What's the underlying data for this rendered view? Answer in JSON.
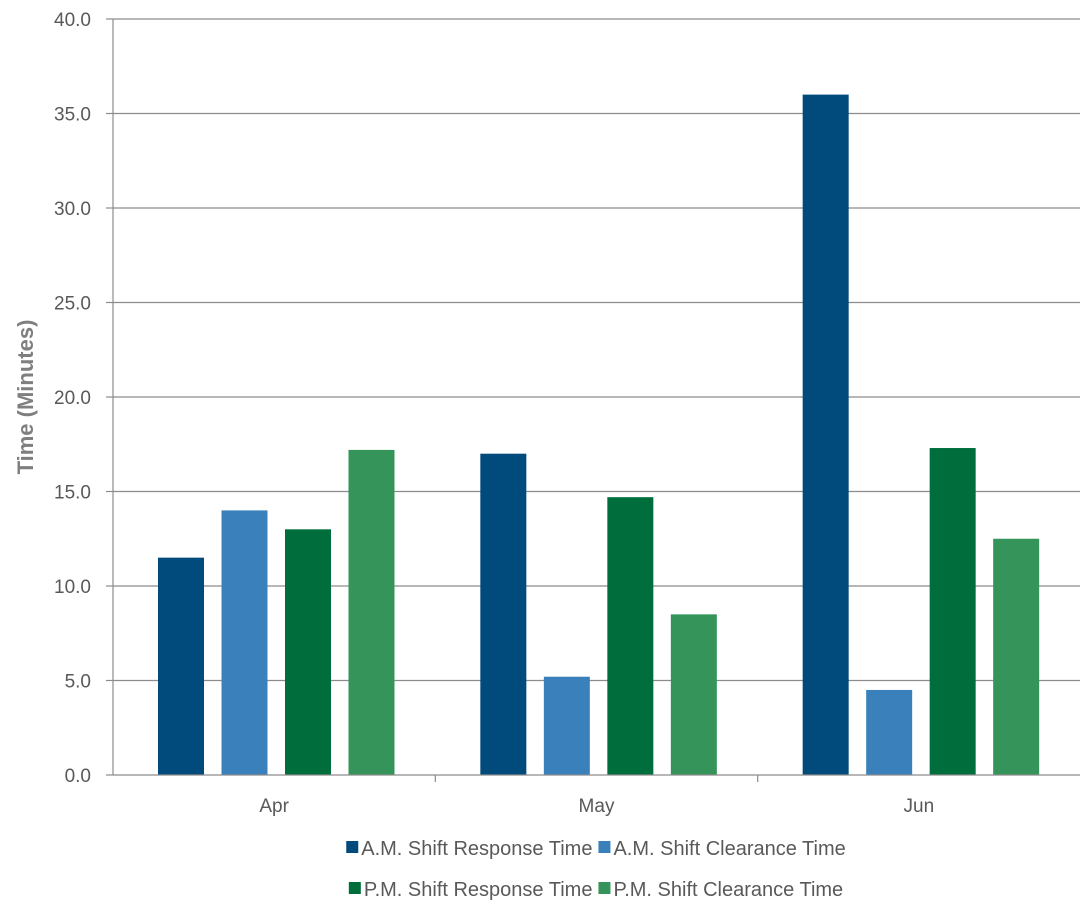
{
  "chart_data": {
    "type": "bar",
    "title": "",
    "xlabel": "",
    "ylabel": "Time (Minutes)",
    "categories": [
      "Apr",
      "May",
      "Jun"
    ],
    "ylim": [
      0,
      40
    ],
    "yticks": [
      "0.0",
      "5.0",
      "10.0",
      "15.0",
      "20.0",
      "25.0",
      "30.0",
      "35.0",
      "40.0"
    ],
    "grid": true,
    "legend_position": "bottom",
    "series": [
      {
        "name": "A.M. Shift Response Time",
        "color": "#004a7c",
        "values": [
          11.5,
          17.0,
          36.0
        ]
      },
      {
        "name": "A.M. Shift Clearance Time",
        "color": "#3a81bb",
        "values": [
          14.0,
          5.2,
          4.5
        ]
      },
      {
        "name": "P.M. Shift Response Time",
        "color": "#006e3c",
        "values": [
          13.0,
          14.7,
          17.3
        ]
      },
      {
        "name": "P.M. Shift Clearance Time",
        "color": "#34945a",
        "values": [
          17.2,
          8.5,
          12.5
        ]
      }
    ]
  }
}
